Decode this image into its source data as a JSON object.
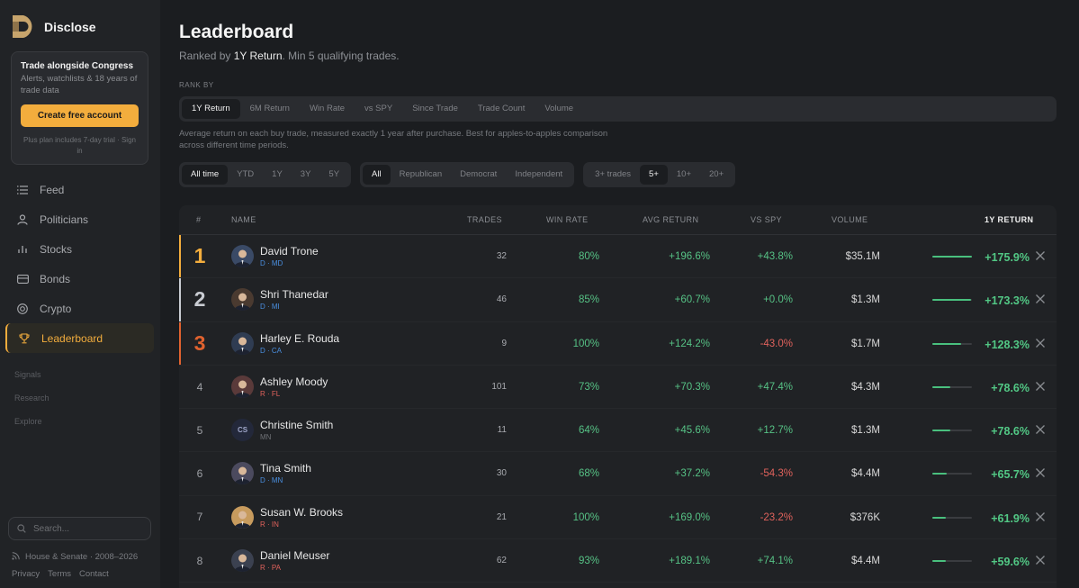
{
  "brand": {
    "name": "Disclose"
  },
  "promo": {
    "title": "Trade alongside Congress",
    "desc": "Alerts, watchlists & 18 years of trade data",
    "button": "Create free account",
    "note": "Plus plan includes 7-day trial ·",
    "signin": "Sign in"
  },
  "nav": [
    {
      "label": "Feed",
      "icon": "list-icon"
    },
    {
      "label": "Politicians",
      "icon": "person-icon"
    },
    {
      "label": "Stocks",
      "icon": "bar-chart-icon"
    },
    {
      "label": "Bonds",
      "icon": "bond-icon"
    },
    {
      "label": "Crypto",
      "icon": "crypto-icon"
    },
    {
      "label": "Leaderboard",
      "icon": "trophy-icon",
      "active": true
    }
  ],
  "sections": [
    "Signals",
    "Research",
    "Explore"
  ],
  "search": {
    "placeholder": "Search..."
  },
  "footer": {
    "coverage": "House & Senate · 2008–2026",
    "links": [
      "Privacy",
      "Terms",
      "Contact"
    ]
  },
  "page": {
    "title": "Leaderboard",
    "subtitle_prefix": "Ranked by ",
    "subtitle_metric": "1Y Return",
    "subtitle_suffix": ". Min 5 qualifying trades.",
    "rank_by_label": "RANK BY",
    "description": "Average return on each buy trade, measured exactly 1 year after purchase. Best for apples-to-apples comparison across different time periods."
  },
  "rank_tabs": [
    "1Y Return",
    "6M Return",
    "Win Rate",
    "vs SPY",
    "Since Trade",
    "Trade Count",
    "Volume"
  ],
  "period_filters": [
    "All time",
    "YTD",
    "1Y",
    "3Y",
    "5Y"
  ],
  "party_filters": [
    "All",
    "Republican",
    "Democrat",
    "Independent"
  ],
  "trade_filters": [
    "3+ trades",
    "5+",
    "10+",
    "20+"
  ],
  "table": {
    "headers": {
      "rank": "#",
      "name": "NAME",
      "trades": "TRADES",
      "win_rate": "WIN RATE",
      "avg_return": "AVG RETURN",
      "vs_spy": "VS SPY",
      "volume": "VOLUME",
      "one_year": "1Y RETURN"
    },
    "rows": [
      {
        "rank": "1",
        "name": "David Trone",
        "party": "D",
        "state": "MD",
        "trades": "32",
        "win": "80%",
        "avg": "+196.6%",
        "spy": "+43.8%",
        "vol": "$35.1M",
        "ret": "+175.9%",
        "fill": 1.0
      },
      {
        "rank": "2",
        "name": "Shri Thanedar",
        "party": "D",
        "state": "MI",
        "trades": "46",
        "win": "85%",
        "avg": "+60.7%",
        "spy": "+0.0%",
        "vol": "$1.3M",
        "ret": "+173.3%",
        "fill": 0.985
      },
      {
        "rank": "3",
        "name": "Harley E. Rouda",
        "party": "D",
        "state": "CA",
        "trades": "9",
        "win": "100%",
        "avg": "+124.2%",
        "spy": "-43.0%",
        "vol": "$1.7M",
        "ret": "+128.3%",
        "fill": 0.73
      },
      {
        "rank": "4",
        "name": "Ashley Moody",
        "party": "R",
        "state": "FL",
        "trades": "101",
        "win": "73%",
        "avg": "+70.3%",
        "spy": "+47.4%",
        "vol": "$4.3M",
        "ret": "+78.6%",
        "fill": 0.45
      },
      {
        "rank": "5",
        "name": "Christine Smith",
        "party": "",
        "state": "MN",
        "initials": "CS",
        "trades": "11",
        "win": "64%",
        "avg": "+45.6%",
        "spy": "+12.7%",
        "vol": "$1.3M",
        "ret": "+78.6%",
        "fill": 0.45
      },
      {
        "rank": "6",
        "name": "Tina Smith",
        "party": "D",
        "state": "MN",
        "trades": "30",
        "win": "68%",
        "avg": "+37.2%",
        "spy": "-54.3%",
        "vol": "$4.4M",
        "ret": "+65.7%",
        "fill": 0.37
      },
      {
        "rank": "7",
        "name": "Susan W. Brooks",
        "party": "R",
        "state": "IN",
        "trades": "21",
        "win": "100%",
        "avg": "+169.0%",
        "spy": "-23.2%",
        "vol": "$376K",
        "ret": "+61.9%",
        "fill": 0.35
      },
      {
        "rank": "8",
        "name": "Daniel Meuser",
        "party": "R",
        "state": "PA",
        "trades": "62",
        "win": "93%",
        "avg": "+189.1%",
        "spy": "+74.1%",
        "vol": "$4.4M",
        "ret": "+59.6%",
        "fill": 0.34
      }
    ]
  },
  "colors": {
    "accent": "#f3ad3d",
    "gold": "#f3ad3d",
    "silver": "#c9ccd2",
    "bronze": "#e0622f",
    "positive": "#56c285",
    "negative": "#e0625c",
    "dem": "#4a8fe0",
    "rep": "#e0625c"
  }
}
